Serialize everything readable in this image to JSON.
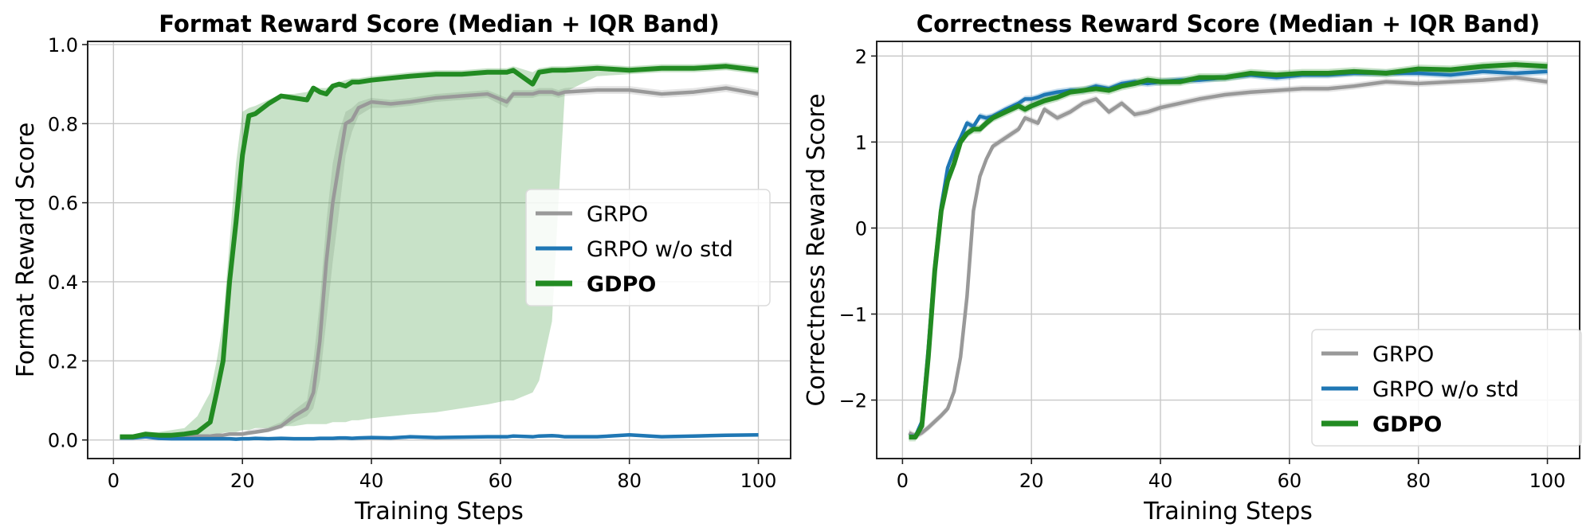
{
  "chart_data": [
    {
      "type": "line",
      "title": "Format Reward Score (Median + IQR Band)",
      "xlabel": "Training Steps",
      "ylabel": "Format Reward Score",
      "xlim": [
        -4,
        105
      ],
      "ylim": [
        -0.047,
        1.008
      ],
      "xticks": [
        0,
        20,
        40,
        60,
        80,
        100
      ],
      "yticks": [
        0.0,
        0.2,
        0.4,
        0.6,
        0.8,
        1.0
      ],
      "ytick_labels": [
        "0.0",
        "0.2",
        "0.4",
        "0.6",
        "0.8",
        "1.0"
      ],
      "grid": true,
      "legend_position": "center-right",
      "x": [
        1,
        3,
        5,
        7,
        9,
        11,
        13,
        15,
        16,
        17,
        18,
        19,
        20,
        21,
        22,
        24,
        26,
        28,
        30,
        31,
        32,
        33,
        34,
        35,
        36,
        37,
        38,
        40,
        43,
        46,
        50,
        54,
        58,
        61,
        62,
        65,
        66,
        68,
        69,
        70,
        75,
        80,
        85,
        90,
        95,
        100
      ],
      "series": [
        {
          "name": "GRPO",
          "color": "#999999",
          "bold": false,
          "values": [
            0.008,
            0.008,
            0.008,
            0.008,
            0.01,
            0.01,
            0.01,
            0.01,
            0.012,
            0.012,
            0.015,
            0.015,
            0.015,
            0.018,
            0.02,
            0.025,
            0.035,
            0.06,
            0.08,
            0.12,
            0.25,
            0.45,
            0.6,
            0.7,
            0.8,
            0.81,
            0.84,
            0.855,
            0.85,
            0.855,
            0.865,
            0.87,
            0.875,
            0.855,
            0.875,
            0.875,
            0.88,
            0.88,
            0.875,
            0.88,
            0.885,
            0.885,
            0.875,
            0.88,
            0.89,
            0.875
          ],
          "iqr_low": [
            0.005,
            0.005,
            0.005,
            0.005,
            0.005,
            0.005,
            0.005,
            0.005,
            0.008,
            0.008,
            0.01,
            0.01,
            0.01,
            0.012,
            0.015,
            0.02,
            0.028,
            0.045,
            0.06,
            0.08,
            0.15,
            0.3,
            0.45,
            0.58,
            0.72,
            0.78,
            0.82,
            0.84,
            0.84,
            0.845,
            0.855,
            0.86,
            0.865,
            0.84,
            0.865,
            0.865,
            0.87,
            0.87,
            0.865,
            0.87,
            0.875,
            0.875,
            0.865,
            0.87,
            0.88,
            0.865
          ],
          "iqr_high": [
            0.012,
            0.012,
            0.012,
            0.012,
            0.012,
            0.012,
            0.012,
            0.012,
            0.015,
            0.015,
            0.02,
            0.02,
            0.02,
            0.025,
            0.028,
            0.032,
            0.045,
            0.075,
            0.1,
            0.2,
            0.35,
            0.55,
            0.7,
            0.78,
            0.83,
            0.84,
            0.855,
            0.865,
            0.86,
            0.865,
            0.875,
            0.88,
            0.885,
            0.865,
            0.885,
            0.885,
            0.89,
            0.89,
            0.885,
            0.89,
            0.895,
            0.895,
            0.885,
            0.89,
            0.9,
            0.885
          ]
        },
        {
          "name": "GRPO w/o std",
          "color": "#1f77b4",
          "bold": false,
          "values": [
            0.005,
            0.005,
            0.008,
            0.004,
            0.003,
            0.003,
            0.003,
            0.003,
            0.003,
            0.003,
            0.003,
            0.002,
            0.003,
            0.003,
            0.004,
            0.003,
            0.004,
            0.003,
            0.003,
            0.003,
            0.004,
            0.004,
            0.004,
            0.005,
            0.005,
            0.004,
            0.005,
            0.006,
            0.005,
            0.008,
            0.006,
            0.007,
            0.008,
            0.008,
            0.01,
            0.008,
            0.01,
            0.011,
            0.01,
            0.008,
            0.008,
            0.013,
            0.008,
            0.01,
            0.012,
            0.013
          ],
          "iqr_halfwidth": 0.004
        },
        {
          "name": "GDPO",
          "color": "#228b22",
          "bold": true,
          "values": [
            0.008,
            0.008,
            0.015,
            0.012,
            0.012,
            0.015,
            0.02,
            0.045,
            0.12,
            0.2,
            0.4,
            0.55,
            0.72,
            0.82,
            0.825,
            0.85,
            0.87,
            0.865,
            0.86,
            0.89,
            0.88,
            0.875,
            0.895,
            0.9,
            0.895,
            0.905,
            0.905,
            0.91,
            0.915,
            0.92,
            0.925,
            0.925,
            0.93,
            0.93,
            0.935,
            0.9,
            0.93,
            0.935,
            0.935,
            0.935,
            0.94,
            0.935,
            0.94,
            0.94,
            0.945,
            0.935
          ],
          "iqr_low": [
            0.005,
            0.005,
            0.008,
            0.008,
            0.008,
            0.01,
            0.012,
            0.015,
            0.015,
            0.018,
            0.02,
            0.02,
            0.025,
            0.025,
            0.03,
            0.03,
            0.035,
            0.035,
            0.04,
            0.04,
            0.04,
            0.04,
            0.045,
            0.045,
            0.045,
            0.05,
            0.05,
            0.055,
            0.06,
            0.065,
            0.07,
            0.08,
            0.09,
            0.1,
            0.1,
            0.12,
            0.15,
            0.3,
            0.6,
            0.88,
            0.92,
            0.925,
            0.93,
            0.93,
            0.935,
            0.925
          ],
          "iqr_high": [
            0.01,
            0.012,
            0.02,
            0.02,
            0.025,
            0.03,
            0.06,
            0.12,
            0.2,
            0.3,
            0.5,
            0.7,
            0.83,
            0.84,
            0.845,
            0.86,
            0.875,
            0.875,
            0.88,
            0.895,
            0.89,
            0.89,
            0.9,
            0.905,
            0.91,
            0.915,
            0.915,
            0.92,
            0.925,
            0.93,
            0.935,
            0.935,
            0.94,
            0.94,
            0.945,
            0.93,
            0.94,
            0.945,
            0.945,
            0.945,
            0.95,
            0.945,
            0.95,
            0.95,
            0.955,
            0.945
          ]
        }
      ]
    },
    {
      "type": "line",
      "title": "Correctness Reward Score (Median + IQR Band)",
      "xlabel": "Training Steps",
      "ylabel": "Correctness Reward Score",
      "xlim": [
        -4,
        105
      ],
      "ylim": [
        -2.68,
        2.17
      ],
      "xticks": [
        0,
        20,
        40,
        60,
        80,
        100
      ],
      "yticks": [
        -2,
        -1,
        0,
        1,
        2
      ],
      "ytick_labels": [
        "−2",
        "−1",
        "0",
        "1",
        "2"
      ],
      "grid": true,
      "legend_position": "lower-right",
      "x": [
        1,
        2,
        3,
        4,
        5,
        6,
        7,
        8,
        9,
        10,
        11,
        12,
        13,
        14,
        16,
        18,
        19,
        20,
        21,
        22,
        24,
        26,
        28,
        30,
        32,
        34,
        36,
        38,
        40,
        43,
        46,
        50,
        54,
        58,
        62,
        66,
        70,
        75,
        80,
        85,
        90,
        95,
        100
      ],
      "series": [
        {
          "name": "GRPO",
          "color": "#999999",
          "bold": false,
          "values": [
            -2.38,
            -2.42,
            -2.38,
            -2.32,
            -2.25,
            -2.18,
            -2.1,
            -1.9,
            -1.5,
            -0.8,
            0.2,
            0.6,
            0.8,
            0.95,
            1.05,
            1.15,
            1.28,
            1.25,
            1.22,
            1.38,
            1.28,
            1.35,
            1.45,
            1.5,
            1.35,
            1.45,
            1.32,
            1.35,
            1.4,
            1.45,
            1.5,
            1.55,
            1.58,
            1.6,
            1.62,
            1.62,
            1.65,
            1.7,
            1.68,
            1.7,
            1.72,
            1.75,
            1.7
          ],
          "iqr_halfwidth": 0.04
        },
        {
          "name": "GRPO w/o std",
          "color": "#1f77b4",
          "bold": false,
          "values": [
            -2.42,
            -2.42,
            -2.25,
            -1.4,
            -0.45,
            0.25,
            0.7,
            0.9,
            1.05,
            1.22,
            1.18,
            1.3,
            1.28,
            1.3,
            1.38,
            1.45,
            1.5,
            1.5,
            1.52,
            1.55,
            1.58,
            1.6,
            1.6,
            1.65,
            1.62,
            1.68,
            1.7,
            1.68,
            1.7,
            1.72,
            1.72,
            1.75,
            1.78,
            1.75,
            1.78,
            1.78,
            1.8,
            1.8,
            1.8,
            1.78,
            1.82,
            1.8,
            1.82
          ],
          "iqr_halfwidth": 0.04
        },
        {
          "name": "GDPO",
          "color": "#228b22",
          "bold": true,
          "values": [
            -2.43,
            -2.43,
            -2.3,
            -1.5,
            -0.5,
            0.2,
            0.55,
            0.75,
            1.0,
            1.1,
            1.15,
            1.15,
            1.22,
            1.28,
            1.35,
            1.42,
            1.38,
            1.42,
            1.45,
            1.48,
            1.52,
            1.58,
            1.6,
            1.62,
            1.6,
            1.65,
            1.68,
            1.72,
            1.7,
            1.7,
            1.75,
            1.75,
            1.8,
            1.78,
            1.8,
            1.8,
            1.82,
            1.8,
            1.85,
            1.84,
            1.88,
            1.9,
            1.88
          ],
          "iqr_halfwidth": 0.05
        }
      ]
    }
  ]
}
